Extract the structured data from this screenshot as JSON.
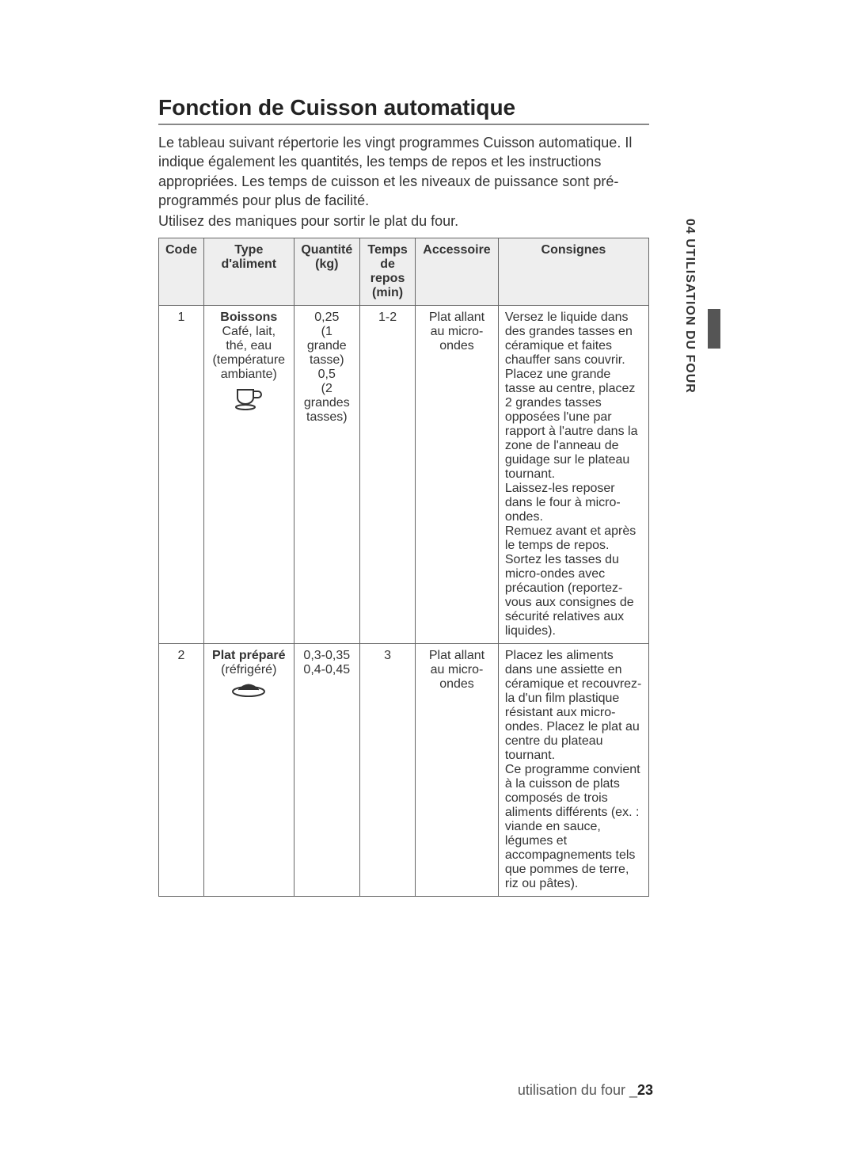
{
  "title": "Fonction de Cuisson automatique",
  "intro": "Le tableau suivant répertorie les vingt programmes Cuisson automatique. Il indique également les quantités, les temps de repos et les instructions appropriées. Les temps de cuisson et les niveaux de puissance sont pré-programmés pour plus de facilité.",
  "subintro": "Utilisez des maniques pour sortir le plat du four.",
  "side_tab": "04 UTILISATION DU FOUR",
  "footer_label": "utilisation du four _",
  "footer_page": "23",
  "table": {
    "headers": {
      "code": "Code",
      "type": "Type d'aliment",
      "qty": "Quantité (kg)",
      "time": "Temps de repos (min)",
      "acc": "Accessoire",
      "cons": "Consignes"
    },
    "rows": [
      {
        "code": "1",
        "type_bold": "Boissons",
        "type_rest": "Café, lait, thé, eau (température ambiante)",
        "icon": "cup",
        "qty": "0,25\n(1 grande tasse)\n0,5\n(2 grandes tasses)",
        "time": "1-2",
        "acc": "Plat allant au micro-ondes",
        "cons": "Versez le liquide dans des grandes tasses en céramique et faites chauffer sans couvrir. Placez une grande tasse au centre, placez 2 grandes tasses opposées l'une par rapport à l'autre dans la zone de l'anneau de guidage sur le plateau tournant.\nLaissez-les reposer dans le four à micro-ondes.\nRemuez avant et après le temps de repos.\nSortez les tasses du micro-ondes avec précaution (reportez-vous aux consignes de sécurité relatives aux liquides)."
      },
      {
        "code": "2",
        "type_bold": "Plat préparé",
        "type_rest": "(réfrigéré)",
        "icon": "plate",
        "qty": "0,3-0,35\n0,4-0,45",
        "time": "3",
        "acc": "Plat allant au micro-ondes",
        "cons": "Placez les aliments dans une assiette en céramique et recouvrez-la d'un film plastique résistant aux micro-ondes. Placez le plat au centre du plateau tournant.\nCe programme convient à la cuisson de plats composés de trois aliments différents (ex. : viande en sauce, légumes et accompagnements tels que pommes de terre, riz ou pâtes)."
      }
    ]
  }
}
